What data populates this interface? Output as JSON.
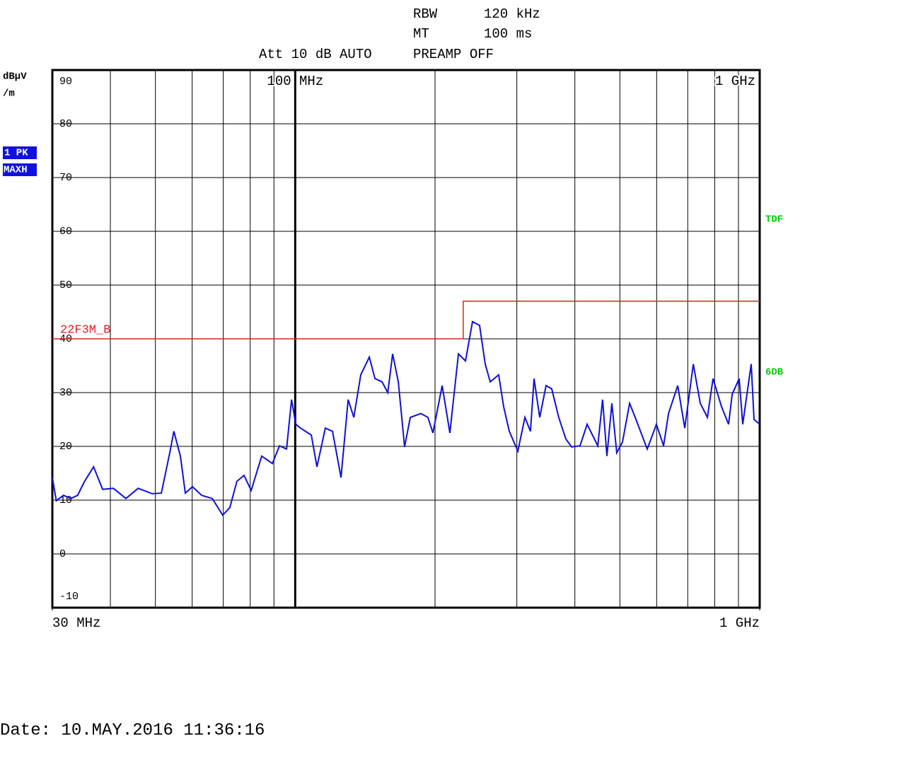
{
  "header": {
    "rbw_label": "RBW",
    "rbw": "120 kHz",
    "mt_label": "MT",
    "mt": "100 ms",
    "att": "Att 10 dB AUTO",
    "preamp": "PREAMP OFF"
  },
  "footer": {
    "date": "Date: 10.MAY.2016  11:36:16"
  },
  "chart_data": {
    "type": "line",
    "xscale": "log",
    "ylabel": "dBµV",
    "ylabel_unit": "/m",
    "xlim": [
      30,
      1000
    ],
    "ylim": [
      -10,
      90
    ],
    "xticks": [
      {
        "value": 30,
        "label": "30 MHz"
      },
      {
        "value": 1000,
        "label": "1 GHz"
      }
    ],
    "xticks_top": [
      {
        "value": 100,
        "label": "100 MHz"
      },
      {
        "value": 1000,
        "label": "1 GHz"
      }
    ],
    "xgrid": [
      40,
      50,
      60,
      70,
      80,
      90,
      100,
      200,
      300,
      400,
      500,
      600,
      700,
      800,
      900
    ],
    "yticks": [
      90,
      80,
      70,
      60,
      50,
      40,
      30,
      20,
      10,
      0,
      -10
    ],
    "grid": true,
    "right_labels": [
      {
        "text": "TDF",
        "color": "#00d000"
      },
      {
        "text": "6DB",
        "color": "#00d000"
      }
    ],
    "series": [
      {
        "name": "1 PK",
        "detector": "MAXH",
        "color": "#1010d8",
        "x": [
          30,
          30.6,
          31.7,
          32.9,
          34.0,
          35.2,
          36.8,
          38.5,
          40.6,
          43.2,
          45.9,
          49.2,
          51.5,
          53.7,
          54.8,
          56.6,
          58.0,
          60.1,
          62.9,
          66.3,
          69.8,
          72.3,
          74.9,
          77.6,
          80.4,
          84.7,
          89.3,
          92.5,
          95.8,
          98.2,
          100.3,
          102.7,
          108.3,
          111.4,
          116.1,
          120.3,
          125.5,
          130.0,
          133.7,
          138.4,
          144.4,
          148.5,
          153.8,
          158.2,
          162.1,
          166.7,
          172.0,
          176.9,
          186.5,
          193.1,
          197.9,
          207.2,
          215.3,
          224.6,
          232.6,
          240.8,
          249.4,
          256.5,
          262.9,
          274.2,
          281.0,
          289.0,
          301.5,
          312.3,
          321.0,
          326.7,
          336.0,
          346.8,
          356.7,
          369.3,
          382.5,
          393.6,
          410.4,
          425.1,
          448.2,
          459.0,
          468.9,
          480.6,
          492.3,
          506.4,
          524.7,
          539.4,
          572.7,
          599.4,
          621.0,
          636.3,
          666.0,
          689.7,
          719.4,
          744.9,
          771.6,
          793.5,
          827.4,
          857.1,
          872.4,
          903.3,
          919.2,
          958.8,
          972.3,
          1000
        ],
        "values": [
          14.2,
          9.9,
          10.9,
          10.3,
          10.9,
          13.5,
          16.2,
          12.0,
          12.2,
          10.3,
          12.2,
          11.2,
          11.3,
          18.8,
          22.8,
          18.2,
          11.3,
          12.5,
          10.9,
          10.3,
          7.2,
          8.6,
          13.5,
          14.6,
          11.8,
          18.2,
          16.8,
          20.1,
          19.5,
          28.7,
          24.1,
          23.4,
          22.1,
          16.2,
          23.4,
          22.8,
          14.2,
          28.7,
          25.4,
          33.3,
          36.6,
          32.6,
          32.0,
          30.0,
          37.2,
          32.0,
          19.9,
          25.4,
          26.1,
          25.4,
          22.5,
          31.3,
          22.5,
          37.2,
          35.9,
          43.2,
          42.5,
          35.3,
          32.0,
          33.3,
          27.4,
          22.8,
          19.1,
          25.4,
          22.8,
          32.6,
          25.4,
          31.3,
          30.7,
          25.4,
          21.4,
          19.9,
          20.1,
          24.1,
          20.1,
          28.7,
          18.2,
          28.0,
          18.8,
          20.8,
          28.0,
          25.4,
          19.5,
          24.1,
          20.1,
          26.1,
          31.3,
          23.4,
          35.3,
          28.0,
          25.4,
          32.6,
          27.4,
          24.1,
          29.7,
          32.6,
          24.1,
          35.3,
          25.0,
          24.1
        ]
      },
      {
        "name": "22F3M_B",
        "color": "#e02020",
        "x": [
          30,
          230,
          230,
          1000
        ],
        "values": [
          40,
          40,
          47,
          47
        ]
      }
    ]
  }
}
